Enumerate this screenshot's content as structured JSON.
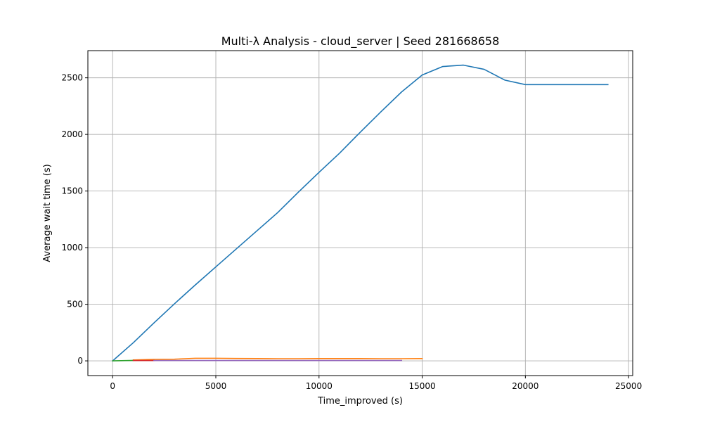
{
  "chart_data": {
    "type": "line",
    "title": "Multi-λ Analysis - cloud_server | Seed 281668658",
    "xlabel": "Time_improved (s)",
    "ylabel": "Average wait time (s)",
    "xlim": [
      -1200,
      25200
    ],
    "ylim": [
      -130,
      2740
    ],
    "xticks": [
      0,
      5000,
      10000,
      15000,
      20000,
      25000
    ],
    "yticks": [
      0,
      500,
      1000,
      1500,
      2000,
      2500
    ],
    "xtick_labels": [
      "0",
      "5000",
      "10000",
      "15000",
      "20000",
      "25000"
    ],
    "ytick_labels": [
      "0",
      "500",
      "1000",
      "1500",
      "2000",
      "2500"
    ],
    "grid": true,
    "series": [
      {
        "color": "#1f77b4",
        "x": [
          0,
          1000,
          2000,
          3000,
          4000,
          5000,
          6000,
          7000,
          8000,
          9000,
          10000,
          11000,
          12000,
          13000,
          14000,
          15000,
          16000,
          17000,
          18000,
          19000,
          20000,
          21000,
          22000,
          23000,
          24000
        ],
        "y": [
          0,
          160,
          335,
          505,
          670,
          830,
          990,
          1150,
          1310,
          1490,
          1665,
          1835,
          2020,
          2200,
          2375,
          2525,
          2600,
          2612,
          2575,
          2480,
          2440,
          2440,
          2440,
          2440,
          2440
        ]
      },
      {
        "color": "#ff7f0e",
        "x": [
          1000,
          2000,
          3000,
          4000,
          5000,
          6000,
          7000,
          8000,
          9000,
          10000,
          11000,
          12000,
          13000,
          14000,
          15000
        ],
        "y": [
          8,
          13,
          15,
          23,
          23,
          21,
          20,
          19,
          19,
          20,
          20,
          20,
          19,
          19,
          20
        ]
      },
      {
        "color": "#2ca02c",
        "x": [
          0,
          1000
        ],
        "y": [
          0,
          4
        ]
      },
      {
        "color": "#d62728",
        "x": [
          1000,
          2000
        ],
        "y": [
          3,
          3
        ]
      },
      {
        "color": "#9467bd",
        "x": [
          2000,
          3000,
          4000,
          5000,
          6000,
          7000,
          8000,
          9000,
          10000,
          11000,
          12000,
          13000,
          14000
        ],
        "y": [
          3,
          3,
          3,
          3,
          3,
          3,
          3,
          3,
          3,
          3,
          3,
          3,
          3
        ]
      }
    ]
  }
}
